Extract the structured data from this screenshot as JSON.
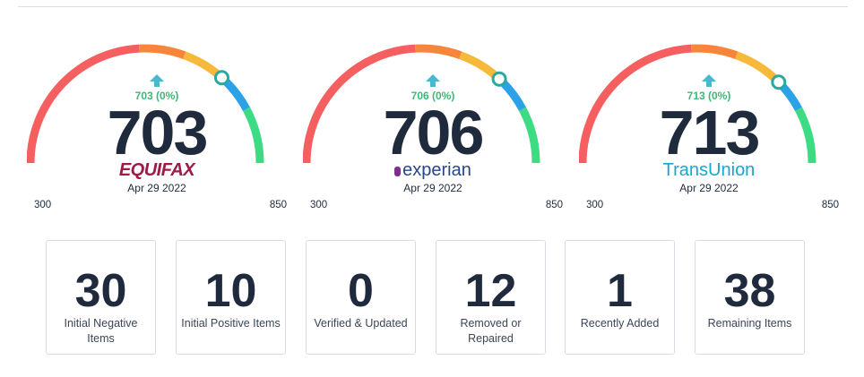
{
  "colors": {
    "gauge_segments": [
      "#f65f5f",
      "#f7853a",
      "#f7b93a",
      "#2ba1e8",
      "#3ddb84"
    ],
    "change_positive": "#3cb878",
    "arrow": "#48b8cf",
    "score": "#1f2a3c"
  },
  "gauges": [
    {
      "bureau": "EQUIFAX",
      "score": "703",
      "change": "703 (0%)",
      "date": "Apr 29 2022",
      "min": "300",
      "max": "850",
      "score_value": 703,
      "icon": "trend-up-icon"
    },
    {
      "bureau": "experian",
      "score": "706",
      "change": "706 (0%)",
      "date": "Apr 29 2022",
      "min": "300",
      "max": "850",
      "score_value": 706,
      "icon": "trend-up-icon"
    },
    {
      "bureau": "TransUnion",
      "score": "713",
      "change": "713 (0%)",
      "date": "Apr 29 2022",
      "min": "300",
      "max": "850",
      "score_value": 713,
      "icon": "trend-up-icon"
    }
  ],
  "stats": [
    {
      "value": "30",
      "label": "Initial Negative Items"
    },
    {
      "value": "10",
      "label": "Initial Positive Items"
    },
    {
      "value": "0",
      "label": "Verified & Updated"
    },
    {
      "value": "12",
      "label": "Removed or Repaired"
    },
    {
      "value": "1",
      "label": "Recently Added"
    },
    {
      "value": "38",
      "label": "Remaining Items"
    }
  ]
}
